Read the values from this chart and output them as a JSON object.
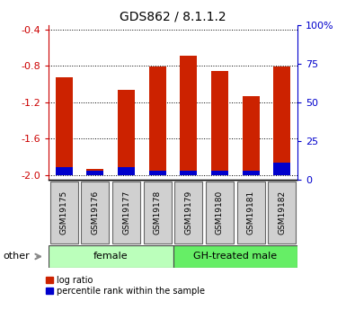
{
  "title": "GDS862 / 8.1.1.2",
  "samples": [
    "GSM19175",
    "GSM19176",
    "GSM19177",
    "GSM19178",
    "GSM19179",
    "GSM19180",
    "GSM19181",
    "GSM19182"
  ],
  "log_ratio": [
    -0.93,
    -1.93,
    -1.06,
    -0.81,
    -0.69,
    -0.86,
    -1.13,
    -0.81
  ],
  "percentile_rank": [
    5,
    3,
    5,
    3,
    3,
    3,
    3,
    8
  ],
  "groups": [
    {
      "label": "female",
      "color": "#bbffbb",
      "indices": [
        0,
        1,
        2,
        3
      ]
    },
    {
      "label": "GH-treated male",
      "color": "#66ee66",
      "indices": [
        4,
        5,
        6,
        7
      ]
    }
  ],
  "ylim": [
    -2.05,
    -0.35
  ],
  "yticks_left": [
    -2.0,
    -1.6,
    -1.2,
    -0.8,
    -0.4
  ],
  "yticks_right": [
    0,
    25,
    50,
    75,
    100
  ],
  "bar_color_red": "#cc2200",
  "bar_color_blue": "#0000cc",
  "bar_width": 0.55,
  "other_label": "other",
  "legend_red": "log ratio",
  "legend_blue": "percentile rank within the sample",
  "left_tick_color": "#cc0000",
  "right_tick_color": "#0000cc",
  "dotted_grid_color": "#000000",
  "baseline": -2.0
}
